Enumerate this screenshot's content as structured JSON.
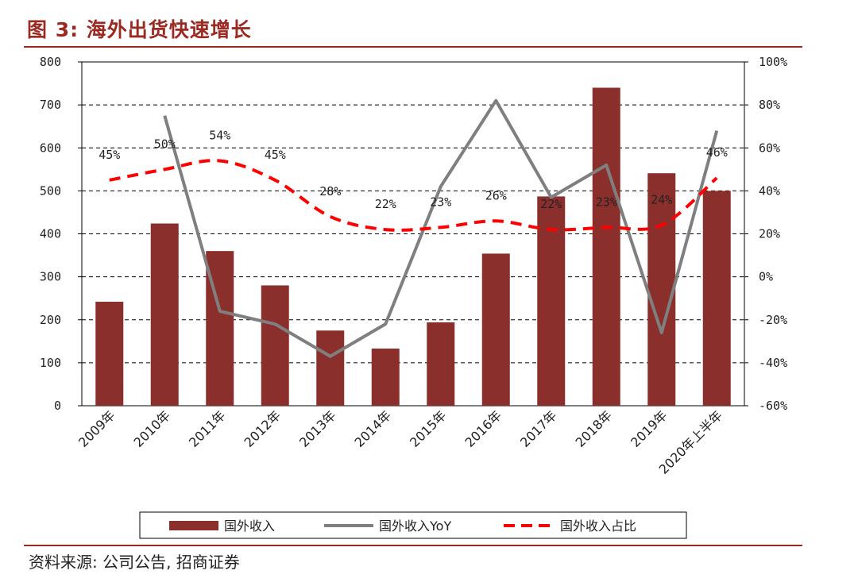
{
  "header": {
    "title": "图 3:  海外出货快速增长"
  },
  "footer": {
    "source": "资料来源:  公司公告,  招商证券"
  },
  "colors": {
    "bar": "#8b2f2c",
    "yoy_line": "#7f7f7f",
    "share_line": "#ff0000",
    "accent": "#9b2a22"
  },
  "chart_data": {
    "type": "bar",
    "categories": [
      "2009年",
      "2010年",
      "2011年",
      "2012年",
      "2013年",
      "2014年",
      "2015年",
      "2016年",
      "2017年",
      "2018年",
      "2019年",
      "2020年上半年"
    ],
    "series": [
      {
        "name": "国外收入",
        "type": "bar",
        "axis": "left",
        "values": [
          242,
          424,
          360,
          280,
          175,
          133,
          194,
          354,
          487,
          740,
          541,
          500
        ]
      },
      {
        "name": "国外收入YoY",
        "type": "line",
        "axis": "right",
        "values": [
          null,
          75,
          -16,
          -22,
          -37,
          -22,
          42,
          82,
          37,
          52,
          -26,
          68
        ]
      },
      {
        "name": "国外收入占比",
        "type": "line-dashed",
        "axis": "right",
        "values": [
          45,
          50,
          54,
          45,
          28,
          22,
          23,
          26,
          22,
          23,
          24,
          46
        ],
        "labels": [
          "45%",
          "50%",
          "54%",
          "45%",
          "28%",
          "22%",
          "23%",
          "26%",
          "22%",
          "23%",
          "24%",
          "46%"
        ]
      }
    ],
    "ylim_left": [
      0,
      800
    ],
    "yticks_left": [
      "0",
      "100",
      "200",
      "300",
      "400",
      "500",
      "600",
      "700",
      "800"
    ],
    "ylim_right": [
      -60,
      100
    ],
    "yticks_right": [
      "-60%",
      "-40%",
      "-20%",
      "0%",
      "20%",
      "40%",
      "60%",
      "80%",
      "100%"
    ],
    "grid": "horizontal dashed",
    "legend_position": "bottom"
  }
}
